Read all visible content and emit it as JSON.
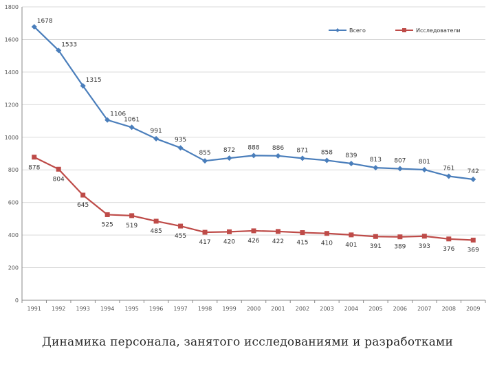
{
  "caption": "Динамика персонала, занятого исследованиями и разработками",
  "chart_data": {
    "type": "line",
    "title": "",
    "xlabel": "",
    "ylabel": "",
    "ylim": [
      0,
      1800
    ],
    "yticks": [
      0,
      200,
      400,
      600,
      800,
      1000,
      1200,
      1400,
      1600,
      1800
    ],
    "grid": true,
    "legend_position": "top-right",
    "categories": [
      "1991",
      "1992",
      "1993",
      "1994",
      "1995",
      "1996",
      "1997",
      "1998",
      "1999",
      "2000",
      "2001",
      "2002",
      "2003",
      "2004",
      "2005",
      "2006",
      "2007",
      "2008",
      "2009"
    ],
    "series": [
      {
        "name": "Всего",
        "color": "#4a7ebb",
        "marker": "diamond",
        "values": [
          1678,
          1533,
          1315,
          1106,
          1061,
          991,
          935,
          855,
          872,
          888,
          886,
          871,
          858,
          839,
          813,
          807,
          801,
          761,
          742
        ]
      },
      {
        "name": "Исследователи",
        "color": "#be4b48",
        "marker": "square",
        "values": [
          878,
          804,
          645,
          525,
          519,
          485,
          455,
          417,
          420,
          426,
          422,
          415,
          410,
          401,
          391,
          389,
          393,
          376,
          369
        ]
      }
    ]
  }
}
